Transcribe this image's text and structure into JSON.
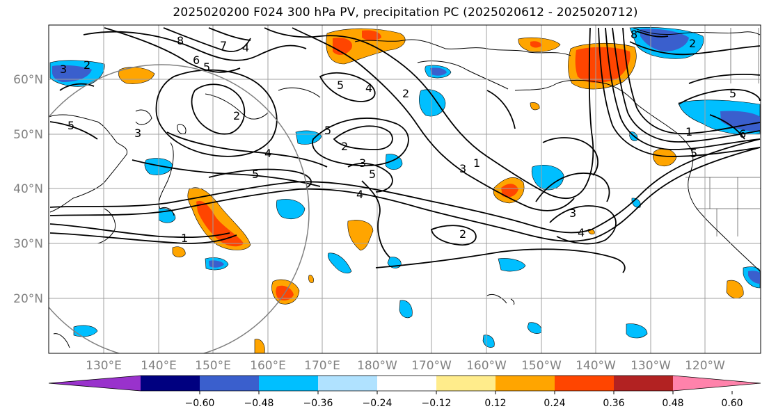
{
  "title": "2025020200 F024 300 hPa PV, precipitation PC (2025020612 - 2025020712)",
  "lat_labels": [
    "60°N",
    "50°N",
    "40°N",
    "30°N",
    "20°N"
  ],
  "lon_labels": [
    "130°E",
    "140°E",
    "150°E",
    "160°E",
    "170°E",
    "180°W",
    "170°W",
    "160°W",
    "150°W",
    "140°W",
    "130°W",
    "120°W"
  ],
  "pv_contour_labels": [
    "8",
    "7",
    "6",
    "5",
    "4",
    "5",
    "5",
    "4",
    "2",
    "3",
    "2",
    "3",
    "5",
    "4",
    "5",
    "2",
    "3",
    "5",
    "1",
    "3",
    "4",
    "2",
    "1",
    "3",
    "4",
    "2",
    "1",
    "5",
    "6",
    "5",
    "2",
    "8"
  ],
  "colorbar": {
    "tick_labels": [
      "−0.60",
      "−0.48",
      "−0.36",
      "−0.24",
      "−0.12",
      "0.12",
      "0.24",
      "0.36",
      "0.48",
      "0.60"
    ],
    "colors": [
      "#9932cc",
      "#000080",
      "#3a5fcd",
      "#00bfff",
      "#b0e2ff",
      "#ffffff",
      "#ffec8b",
      "#ffa500",
      "#ff4500",
      "#b22222",
      "#ff82ab"
    ]
  },
  "colors": {
    "grid": "#a0a0a0",
    "coast": "#000000",
    "pv_contour": "#000000",
    "circle": "#808080"
  }
}
